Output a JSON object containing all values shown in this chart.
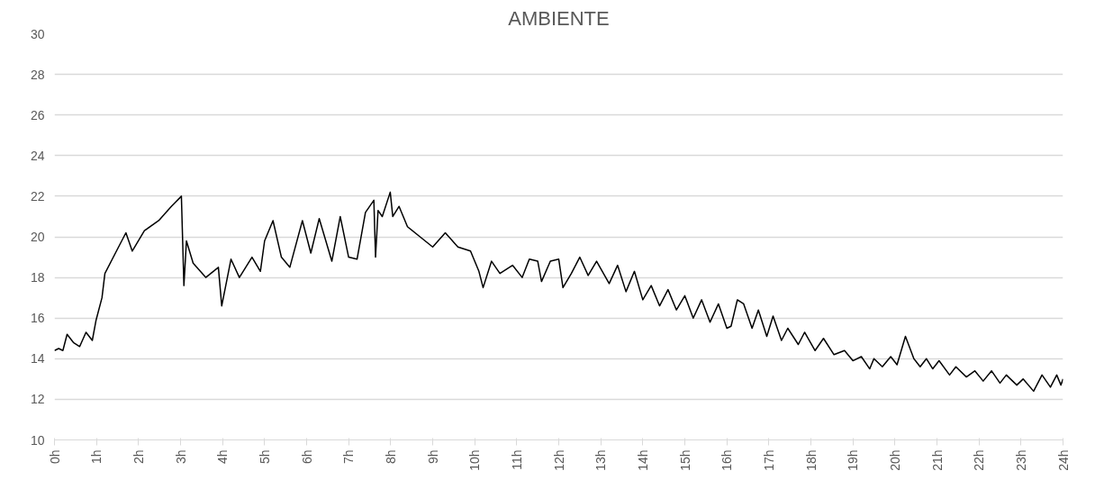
{
  "chart_data": {
    "type": "line",
    "title": "AMBIENTE",
    "xlim": [
      0,
      24
    ],
    "xticks": [
      {
        "value": 0,
        "label": "0h"
      },
      {
        "value": 1,
        "label": "1h"
      },
      {
        "value": 2,
        "label": "2h"
      },
      {
        "value": 3,
        "label": "3h"
      },
      {
        "value": 4,
        "label": "4h"
      },
      {
        "value": 5,
        "label": "5h"
      },
      {
        "value": 6,
        "label": "6h"
      },
      {
        "value": 7,
        "label": "7h"
      },
      {
        "value": 8,
        "label": "8h"
      },
      {
        "value": 9,
        "label": "9h"
      },
      {
        "value": 10,
        "label": "10h"
      },
      {
        "value": 11,
        "label": "11h"
      },
      {
        "value": 12,
        "label": "12h"
      },
      {
        "value": 13,
        "label": "13h"
      },
      {
        "value": 14,
        "label": "14h"
      },
      {
        "value": 15,
        "label": "15h"
      },
      {
        "value": 16,
        "label": "16h"
      },
      {
        "value": 17,
        "label": "17h"
      },
      {
        "value": 18,
        "label": "18h"
      },
      {
        "value": 19,
        "label": "19h"
      },
      {
        "value": 20,
        "label": "20h"
      },
      {
        "value": 21,
        "label": "21h"
      },
      {
        "value": 22,
        "label": "22h"
      },
      {
        "value": 23,
        "label": "23h"
      },
      {
        "value": 24,
        "label": "24h"
      }
    ],
    "ylim": [
      10,
      30
    ],
    "yticks": [
      10,
      12,
      14,
      16,
      18,
      20,
      22,
      24,
      26,
      28,
      30
    ],
    "grid": "y",
    "marker": "none",
    "line_style": "solid",
    "series": [
      {
        "color": "#000000",
        "x": [
          0,
          0.1,
          0.2,
          0.3,
          0.45,
          0.6,
          0.75,
          0.9,
          0.99,
          1.13,
          1.2,
          1.5,
          1.7,
          1.85,
          2.14,
          2.48,
          2.78,
          3.02,
          3.08,
          3.14,
          3.3,
          3.6,
          3.9,
          3.98,
          4.2,
          4.4,
          4.7,
          4.9,
          5.0,
          5.2,
          5.4,
          5.6,
          5.9,
          6.1,
          6.3,
          6.6,
          6.8,
          7.0,
          7.2,
          7.4,
          7.6,
          7.64,
          7.7,
          7.8,
          7.99,
          8.05,
          8.2,
          8.4,
          8.7,
          9.0,
          9.3,
          9.6,
          9.9,
          10.1,
          10.2,
          10.4,
          10.6,
          10.9,
          11.13,
          11.3,
          11.5,
          11.59,
          11.8,
          12.0,
          12.1,
          12.3,
          12.5,
          12.7,
          12.9,
          13.2,
          13.4,
          13.6,
          13.8,
          14.0,
          14.2,
          14.4,
          14.6,
          14.8,
          15.0,
          15.2,
          15.4,
          15.6,
          15.8,
          16.0,
          16.1,
          16.25,
          16.4,
          16.6,
          16.75,
          16.95,
          17.1,
          17.3,
          17.45,
          17.7,
          17.85,
          18.1,
          18.3,
          18.55,
          18.8,
          19.0,
          19.2,
          19.4,
          19.5,
          19.7,
          19.9,
          20.05,
          20.25,
          20.45,
          20.6,
          20.75,
          20.9,
          21.05,
          21.3,
          21.45,
          21.7,
          21.9,
          22.1,
          22.3,
          22.5,
          22.65,
          22.9,
          23.05,
          23.3,
          23.5,
          23.7,
          23.85,
          23.95,
          24.0
        ],
        "values": [
          14.4,
          14.5,
          14.4,
          15.2,
          14.8,
          14.6,
          15.3,
          14.9,
          15.9,
          17.0,
          18.2,
          19.4,
          20.2,
          19.3,
          20.3,
          20.8,
          21.5,
          22.0,
          17.6,
          19.8,
          18.7,
          18.0,
          18.5,
          16.6,
          18.9,
          18.0,
          19.0,
          18.3,
          19.8,
          20.8,
          19.0,
          18.5,
          20.8,
          19.2,
          20.9,
          18.8,
          21.0,
          19.0,
          18.9,
          21.2,
          21.8,
          19.0,
          21.3,
          21.0,
          22.2,
          21.0,
          21.5,
          20.5,
          20.0,
          19.5,
          20.2,
          19.5,
          19.3,
          18.3,
          17.5,
          18.8,
          18.2,
          18.6,
          18.0,
          18.9,
          18.8,
          17.8,
          18.8,
          18.9,
          17.5,
          18.2,
          19.0,
          18.1,
          18.8,
          17.7,
          18.6,
          17.3,
          18.3,
          16.9,
          17.6,
          16.6,
          17.4,
          16.4,
          17.1,
          16.0,
          16.9,
          15.8,
          16.7,
          15.5,
          15.6,
          16.9,
          16.7,
          15.5,
          16.4,
          15.1,
          16.1,
          14.9,
          15.5,
          14.7,
          15.3,
          14.4,
          15.0,
          14.2,
          14.4,
          13.9,
          14.1,
          13.5,
          14.0,
          13.6,
          14.1,
          13.7,
          15.1,
          14.0,
          13.6,
          14.0,
          13.5,
          13.9,
          13.2,
          13.6,
          13.1,
          13.4,
          12.9,
          13.4,
          12.8,
          13.2,
          12.7,
          13.0,
          12.4,
          13.2,
          12.6,
          13.2,
          12.7,
          13.0
        ]
      }
    ]
  }
}
